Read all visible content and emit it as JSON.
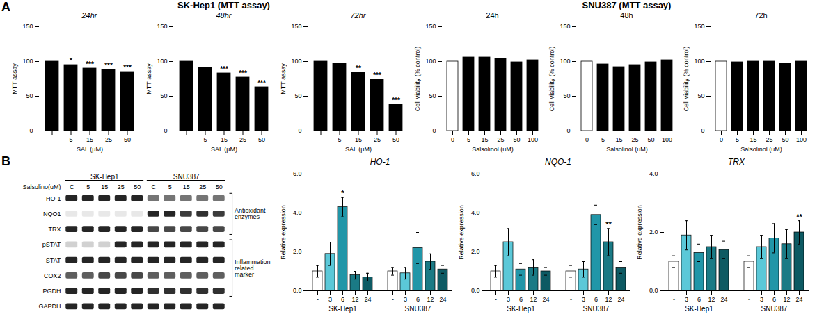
{
  "annotations": [
    "A",
    "SK-Hep1 (MTT assay)",
    "SNU387 (MTT assay)",
    "B"
  ],
  "chart_data": [
    {
      "type": "bar",
      "title": "24hr",
      "categories": [
        "-",
        "5",
        "15",
        "25",
        "50"
      ],
      "values": [
        100,
        95,
        90,
        88,
        85
      ],
      "color": "#000000",
      "xlabel": "SAL (μM)",
      "ylabel": "MTT assay",
      "ylim": [
        0,
        150
      ],
      "yticks": [
        0,
        50,
        100,
        150
      ],
      "annotations": [
        {
          "category": "5",
          "text": "*"
        },
        {
          "category": "15",
          "text": "***"
        },
        {
          "category": "25",
          "text": "***"
        },
        {
          "category": "50",
          "text": "***"
        }
      ]
    },
    {
      "type": "bar",
      "title": "48hr",
      "categories": [
        "-",
        "5",
        "15",
        "25",
        "50"
      ],
      "values": [
        100,
        91,
        83,
        77,
        63
      ],
      "color": "#000000",
      "xlabel": "SAL (μM)",
      "ylabel": "MTT assay",
      "ylim": [
        0,
        150
      ],
      "yticks": [
        0,
        50,
        100,
        150
      ],
      "annotations": [
        {
          "category": "15",
          "text": "***"
        },
        {
          "category": "25",
          "text": "***"
        },
        {
          "category": "50",
          "text": "***"
        }
      ]
    },
    {
      "type": "bar",
      "title": "72hr",
      "categories": [
        "-",
        "5",
        "15",
        "25",
        "50"
      ],
      "values": [
        100,
        97,
        84,
        74,
        38
      ],
      "color": "#000000",
      "xlabel": "SAL (μM)",
      "ylabel": "MTT assay",
      "ylim": [
        0,
        150
      ],
      "yticks": [
        0,
        50,
        100,
        150
      ],
      "annotations": [
        {
          "category": "15",
          "text": "**"
        },
        {
          "category": "25",
          "text": "***"
        },
        {
          "category": "50",
          "text": "***"
        }
      ]
    },
    {
      "type": "bar",
      "title": "24h",
      "categories": [
        "0",
        "5",
        "15",
        "25",
        "50",
        "100"
      ],
      "values": [
        100,
        106,
        106,
        104,
        99,
        102
      ],
      "colors": [
        "#ffffff",
        "#000000",
        "#000000",
        "#000000",
        "#000000",
        "#000000"
      ],
      "xlabel": "Salsolinol (uM)",
      "ylabel": "Cell viability (% control)",
      "ylim": [
        0,
        150
      ],
      "yticks": [
        0,
        50,
        100,
        150
      ]
    },
    {
      "type": "bar",
      "title": "48h",
      "categories": [
        "0",
        "5",
        "15",
        "25",
        "50",
        "100"
      ],
      "values": [
        100,
        96,
        92,
        95,
        99,
        102
      ],
      "colors": [
        "#ffffff",
        "#000000",
        "#000000",
        "#000000",
        "#000000",
        "#000000"
      ],
      "xlabel": "Salsolinol (uM)",
      "ylabel": "Cell viability (% control)",
      "ylim": [
        0,
        150
      ],
      "yticks": [
        0,
        50,
        100,
        150
      ]
    },
    {
      "type": "bar",
      "title": "72h",
      "categories": [
        "0",
        "5",
        "15",
        "25",
        "50",
        "100"
      ],
      "values": [
        100,
        99,
        100,
        100,
        97,
        100
      ],
      "colors": [
        "#ffffff",
        "#000000",
        "#000000",
        "#000000",
        "#000000",
        "#000000"
      ],
      "xlabel": "Salsolinol (uM)",
      "ylabel": "Cell viability (% control)",
      "ylim": [
        0,
        150
      ],
      "yticks": [
        0,
        50,
        100,
        150
      ]
    },
    {
      "type": "heatmap",
      "x": [
        "C",
        "5",
        "15",
        "25",
        "50",
        "C",
        "5",
        "15",
        "25",
        "50"
      ],
      "y": [
        "HO-1",
        "NQO1",
        "TRX",
        "pSTAT",
        "STAT",
        "COX2",
        "PGDH",
        "GAPDH"
      ],
      "cells": [
        [
          0.05,
          0.05,
          0.05,
          0.05,
          0.05,
          0.4,
          0.4,
          0.4,
          0.4,
          0.4
        ],
        [
          0.9,
          0.9,
          0.9,
          0.9,
          0.9,
          0.05,
          0.05,
          0.15,
          0.1,
          0.15
        ],
        [
          0.05,
          0.05,
          0.05,
          0.05,
          0.05,
          0.2,
          0.2,
          0.2,
          0.2,
          0.2
        ],
        [
          0.8,
          0.8,
          0.8,
          0.05,
          0.05,
          0.05,
          0.05,
          0.05,
          0.05,
          0.05
        ],
        [
          0.05,
          0.05,
          0.05,
          0.05,
          0.05,
          0.05,
          0.05,
          0.05,
          0.05,
          0.05
        ],
        [
          0.3,
          0.3,
          0.2,
          0.2,
          0.2,
          0.3,
          0.3,
          0.3,
          0.3,
          0.3
        ],
        [
          0.05,
          0.05,
          0.05,
          0.05,
          0.05,
          0.1,
          0.1,
          0.1,
          0.1,
          0.1
        ],
        [
          0.05,
          0.05,
          0.05,
          0.05,
          0.05,
          0.05,
          0.05,
          0.05,
          0.05,
          0.05
        ]
      ],
      "annotations": [
        "SK-Hep1",
        "SNU387",
        "Salsolino(uM)",
        "Antioxidant\nenzymes",
        "Inflammation\nrelated\nmarker"
      ]
    },
    {
      "type": "bar",
      "title": "HO-1",
      "categories": [
        "-",
        "3",
        "6",
        "12",
        "24"
      ],
      "series": [
        {
          "name": "SK-Hep1",
          "values": [
            1.0,
            1.9,
            4.3,
            0.8,
            0.7
          ],
          "errors": [
            0.3,
            0.6,
            0.5,
            0.2,
            0.2
          ],
          "colors": [
            "#ffffff",
            "#5bc8d8",
            "#2196a8",
            "#1a7a85",
            "#0d5a63"
          ]
        },
        {
          "name": "SNU387",
          "values": [
            1.0,
            0.9,
            2.2,
            1.5,
            1.1
          ],
          "errors": [
            0.2,
            0.3,
            0.8,
            0.4,
            0.2
          ],
          "colors": [
            "#ffffff",
            "#5bc8d8",
            "#2196a8",
            "#1a7a85",
            "#0d5a63"
          ]
        }
      ],
      "ylabel": "Relative expression",
      "ylim": [
        0,
        6
      ],
      "yticks": [
        0,
        2,
        4,
        6
      ],
      "annotations": [
        {
          "series": "SK-Hep1",
          "category": "6",
          "text": "*"
        }
      ]
    },
    {
      "type": "bar",
      "title": "NQO-1",
      "categories": [
        "-",
        "3",
        "6",
        "12",
        "24"
      ],
      "series": [
        {
          "name": "SK-Hep1",
          "values": [
            1.0,
            2.5,
            1.1,
            1.2,
            1.0
          ],
          "errors": [
            0.3,
            0.7,
            0.3,
            0.4,
            0.2
          ],
          "colors": [
            "#ffffff",
            "#5bc8d8",
            "#2196a8",
            "#1a7a85",
            "#0d5a63"
          ]
        },
        {
          "name": "SNU387",
          "values": [
            1.0,
            1.1,
            3.9,
            2.5,
            1.2
          ],
          "errors": [
            0.3,
            0.4,
            0.5,
            0.7,
            0.3
          ],
          "colors": [
            "#ffffff",
            "#5bc8d8",
            "#2196a8",
            "#1a7a85",
            "#0d5a63"
          ]
        }
      ],
      "ylabel": "Relative expression",
      "ylim": [
        0,
        6
      ],
      "yticks": [
        0,
        2,
        4,
        6
      ],
      "annotations": [
        {
          "series": "SNU387",
          "category": "12",
          "text": "**"
        }
      ]
    },
    {
      "type": "bar",
      "title": "TRX",
      "categories": [
        "-",
        "3",
        "6",
        "12",
        "24"
      ],
      "series": [
        {
          "name": "SK-Hep1",
          "values": [
            1.0,
            1.9,
            1.3,
            1.5,
            1.4
          ],
          "errors": [
            0.2,
            0.5,
            0.3,
            0.4,
            0.3
          ],
          "colors": [
            "#ffffff",
            "#5bc8d8",
            "#2196a8",
            "#1a7a85",
            "#0d5a63"
          ]
        },
        {
          "name": "SNU387",
          "values": [
            1.0,
            1.5,
            1.8,
            1.6,
            2.0
          ],
          "errors": [
            0.2,
            0.4,
            0.5,
            0.5,
            0.4
          ],
          "colors": [
            "#ffffff",
            "#5bc8d8",
            "#2196a8",
            "#1a7a85",
            "#0d5a63"
          ]
        }
      ],
      "ylabel": "Relative expression",
      "ylim": [
        0,
        4
      ],
      "yticks": [
        0,
        2,
        4
      ],
      "annotations": [
        {
          "series": "SNU387",
          "category": "24",
          "text": "**"
        }
      ]
    }
  ]
}
